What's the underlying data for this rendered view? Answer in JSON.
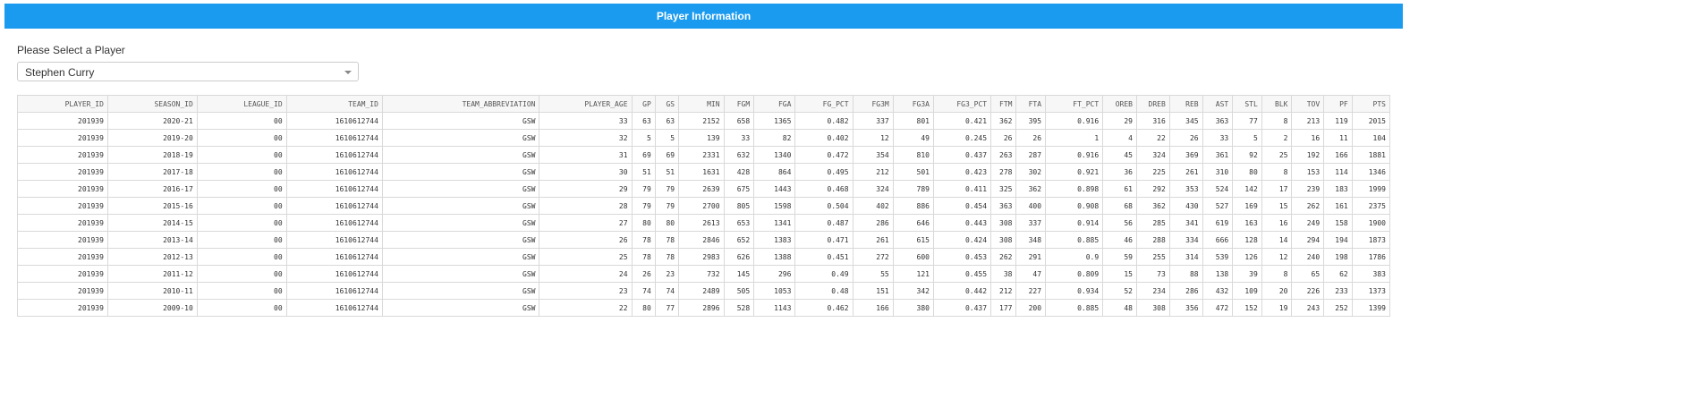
{
  "header": {
    "title": "Player Information"
  },
  "selector": {
    "label": "Please Select a Player",
    "selected_value": "Stephen Curry",
    "arrow_icon": "chevron-down-icon"
  },
  "table": {
    "columns": [
      "PLAYER_ID",
      "SEASON_ID",
      "LEAGUE_ID",
      "TEAM_ID",
      "TEAM_ABBREVIATION",
      "PLAYER_AGE",
      "GP",
      "GS",
      "MIN",
      "FGM",
      "FGA",
      "FG_PCT",
      "FG3M",
      "FG3A",
      "FG3_PCT",
      "FTM",
      "FTA",
      "FT_PCT",
      "OREB",
      "DREB",
      "REB",
      "AST",
      "STL",
      "BLK",
      "TOV",
      "PF",
      "PTS"
    ],
    "rows": [
      [
        "201939",
        "2020-21",
        "00",
        "1610612744",
        "GSW",
        "33",
        "63",
        "63",
        "2152",
        "658",
        "1365",
        "0.482",
        "337",
        "801",
        "0.421",
        "362",
        "395",
        "0.916",
        "29",
        "316",
        "345",
        "363",
        "77",
        "8",
        "213",
        "119",
        "2015"
      ],
      [
        "201939",
        "2019-20",
        "00",
        "1610612744",
        "GSW",
        "32",
        "5",
        "5",
        "139",
        "33",
        "82",
        "0.402",
        "12",
        "49",
        "0.245",
        "26",
        "26",
        "1",
        "4",
        "22",
        "26",
        "33",
        "5",
        "2",
        "16",
        "11",
        "104"
      ],
      [
        "201939",
        "2018-19",
        "00",
        "1610612744",
        "GSW",
        "31",
        "69",
        "69",
        "2331",
        "632",
        "1340",
        "0.472",
        "354",
        "810",
        "0.437",
        "263",
        "287",
        "0.916",
        "45",
        "324",
        "369",
        "361",
        "92",
        "25",
        "192",
        "166",
        "1881"
      ],
      [
        "201939",
        "2017-18",
        "00",
        "1610612744",
        "GSW",
        "30",
        "51",
        "51",
        "1631",
        "428",
        "864",
        "0.495",
        "212",
        "501",
        "0.423",
        "278",
        "302",
        "0.921",
        "36",
        "225",
        "261",
        "310",
        "80",
        "8",
        "153",
        "114",
        "1346"
      ],
      [
        "201939",
        "2016-17",
        "00",
        "1610612744",
        "GSW",
        "29",
        "79",
        "79",
        "2639",
        "675",
        "1443",
        "0.468",
        "324",
        "789",
        "0.411",
        "325",
        "362",
        "0.898",
        "61",
        "292",
        "353",
        "524",
        "142",
        "17",
        "239",
        "183",
        "1999"
      ],
      [
        "201939",
        "2015-16",
        "00",
        "1610612744",
        "GSW",
        "28",
        "79",
        "79",
        "2700",
        "805",
        "1598",
        "0.504",
        "402",
        "886",
        "0.454",
        "363",
        "400",
        "0.908",
        "68",
        "362",
        "430",
        "527",
        "169",
        "15",
        "262",
        "161",
        "2375"
      ],
      [
        "201939",
        "2014-15",
        "00",
        "1610612744",
        "GSW",
        "27",
        "80",
        "80",
        "2613",
        "653",
        "1341",
        "0.487",
        "286",
        "646",
        "0.443",
        "308",
        "337",
        "0.914",
        "56",
        "285",
        "341",
        "619",
        "163",
        "16",
        "249",
        "158",
        "1900"
      ],
      [
        "201939",
        "2013-14",
        "00",
        "1610612744",
        "GSW",
        "26",
        "78",
        "78",
        "2846",
        "652",
        "1383",
        "0.471",
        "261",
        "615",
        "0.424",
        "308",
        "348",
        "0.885",
        "46",
        "288",
        "334",
        "666",
        "128",
        "14",
        "294",
        "194",
        "1873"
      ],
      [
        "201939",
        "2012-13",
        "00",
        "1610612744",
        "GSW",
        "25",
        "78",
        "78",
        "2983",
        "626",
        "1388",
        "0.451",
        "272",
        "600",
        "0.453",
        "262",
        "291",
        "0.9",
        "59",
        "255",
        "314",
        "539",
        "126",
        "12",
        "240",
        "198",
        "1786"
      ],
      [
        "201939",
        "2011-12",
        "00",
        "1610612744",
        "GSW",
        "24",
        "26",
        "23",
        "732",
        "145",
        "296",
        "0.49",
        "55",
        "121",
        "0.455",
        "38",
        "47",
        "0.809",
        "15",
        "73",
        "88",
        "138",
        "39",
        "8",
        "65",
        "62",
        "383"
      ],
      [
        "201939",
        "2010-11",
        "00",
        "1610612744",
        "GSW",
        "23",
        "74",
        "74",
        "2489",
        "505",
        "1053",
        "0.48",
        "151",
        "342",
        "0.442",
        "212",
        "227",
        "0.934",
        "52",
        "234",
        "286",
        "432",
        "109",
        "20",
        "226",
        "233",
        "1373"
      ],
      [
        "201939",
        "2009-10",
        "00",
        "1610612744",
        "GSW",
        "22",
        "80",
        "77",
        "2896",
        "528",
        "1143",
        "0.462",
        "166",
        "380",
        "0.437",
        "177",
        "200",
        "0.885",
        "48",
        "308",
        "356",
        "472",
        "152",
        "19",
        "243",
        "252",
        "1399"
      ]
    ]
  },
  "colors": {
    "header_bg": "#1a9bf0",
    "header_text": "#ffffff",
    "table_border": "#d9d9d9"
  }
}
